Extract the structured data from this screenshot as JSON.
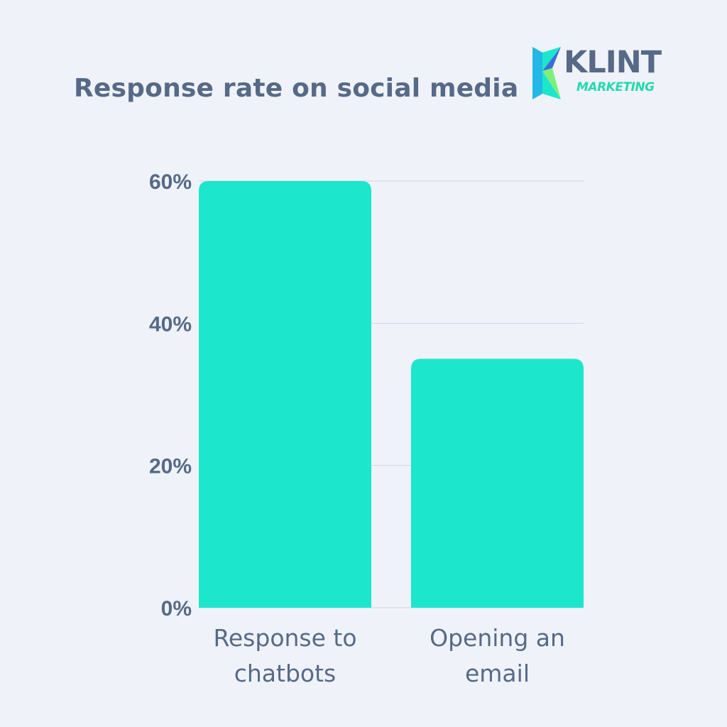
{
  "chart_data": {
    "type": "bar",
    "title": "Response rate on social media",
    "categories": [
      [
        "Response to",
        "chatbots"
      ],
      [
        "Opening an",
        "email"
      ]
    ],
    "values": [
      60,
      35
    ],
    "ylim": [
      0,
      60
    ],
    "yticks": [
      0,
      20,
      40,
      60
    ],
    "ytick_labels": [
      "0%",
      "20%",
      "40%",
      "60%"
    ],
    "xlabel": "",
    "ylabel": "",
    "grid": true,
    "bar_color": "#1ce6cc",
    "grid_color": "#cfd6e6",
    "text_color": "#566a87"
  },
  "brand": {
    "name": "KLINT",
    "tagline": "MARKETING",
    "colors": [
      "#1ce6cc",
      "#23b8e8",
      "#3a6fd8",
      "#7ef07a"
    ]
  }
}
